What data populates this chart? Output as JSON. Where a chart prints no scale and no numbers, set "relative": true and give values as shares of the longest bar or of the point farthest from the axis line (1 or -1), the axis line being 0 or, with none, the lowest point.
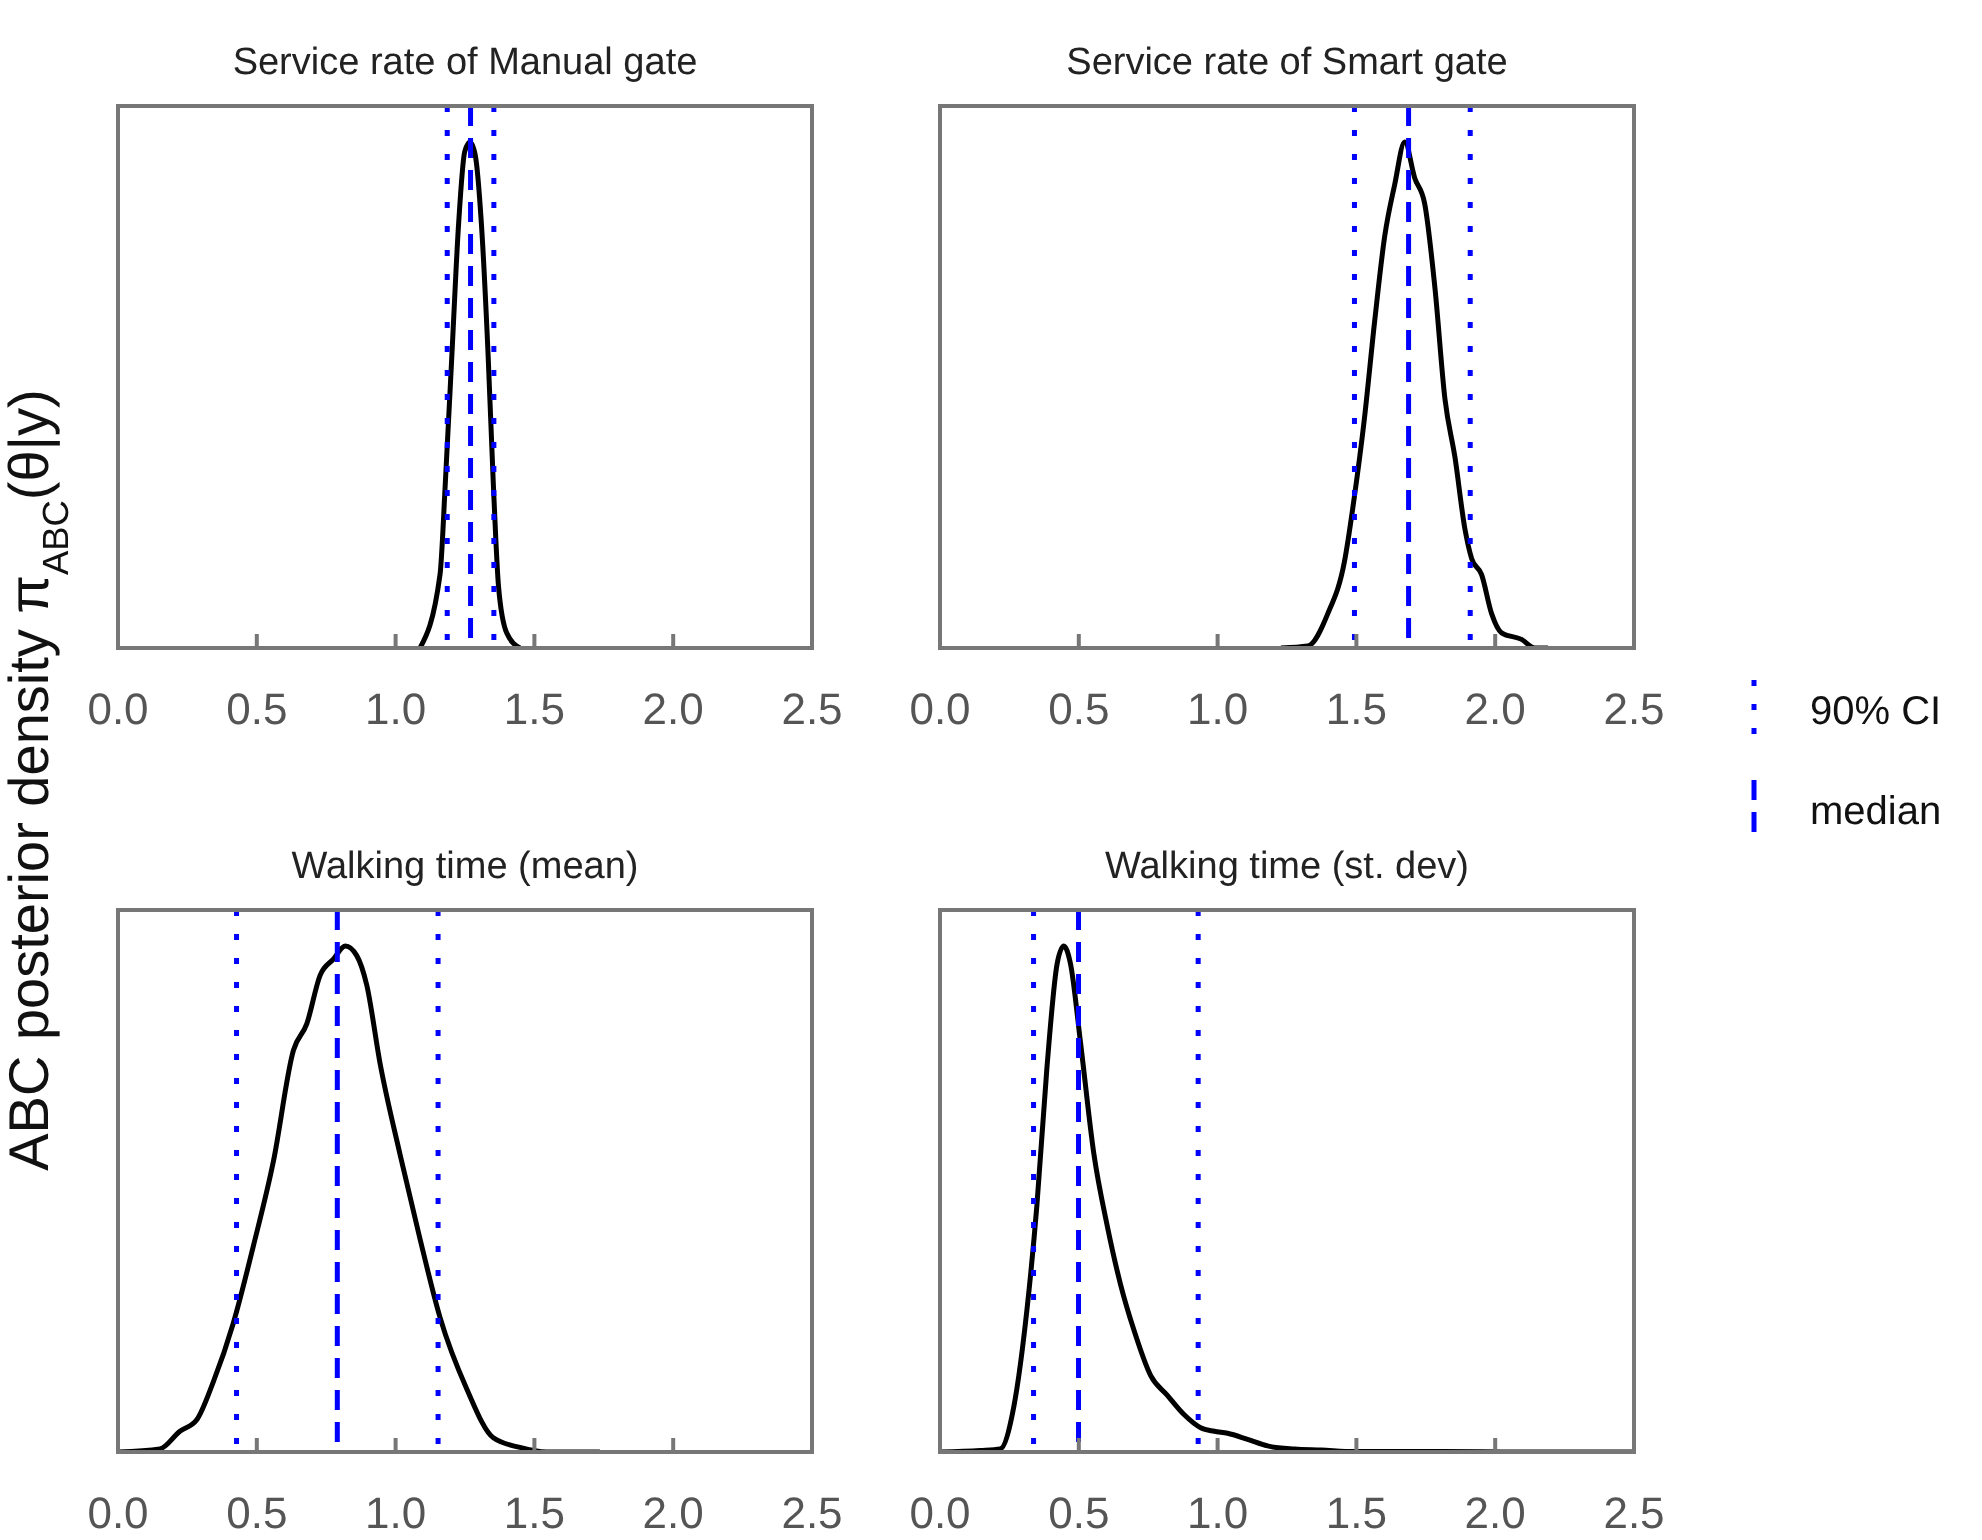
{
  "chart_data": [
    {
      "type": "line",
      "title": "Service rate of Manual gate",
      "ylabel": "ABC posterior density π$_{ABC}$(θ|y)",
      "relative": true,
      "xlim": [
        0,
        2.5
      ],
      "xticks": [
        {
          "value": 0,
          "label": "0.0"
        },
        {
          "value": 0.5,
          "label": "0.5"
        },
        {
          "value": 1,
          "label": "1.0"
        },
        {
          "value": 1.5,
          "label": "1.5"
        },
        {
          "value": 2,
          "label": "2.0"
        },
        {
          "value": 2.5,
          "label": "2.5"
        }
      ],
      "tick_labels": "x",
      "grid": false,
      "legend": false,
      "series": [
        {
          "color": "#000000",
          "x": [
            1.088,
            1.16,
            1.179,
            1.203,
            1.227,
            1.249,
            1.268,
            1.287,
            1.309,
            1.333,
            1.352,
            1.371,
            1.4,
            1.448
          ],
          "values": [
            0,
            0.145,
            0.325,
            0.582,
            0.839,
            0.981,
            1,
            0.974,
            0.839,
            0.582,
            0.325,
            0.12,
            0.03,
            0
          ]
        }
      ],
      "ref_lines": [
        {
          "axis": "x",
          "value": 1.186,
          "color": "#0000ff",
          "line_style": "dotted"
        },
        {
          "axis": "x",
          "value": 1.354,
          "color": "#0000ff",
          "line_style": "dotted"
        },
        {
          "axis": "x",
          "value": 1.27,
          "color": "#0000ff",
          "line_style": "dashed"
        }
      ]
    },
    {
      "type": "line",
      "title": "Service rate of Smart gate",
      "relative": true,
      "xlim": [
        0,
        2.5
      ],
      "xticks": [
        {
          "value": 0,
          "label": "0.0"
        },
        {
          "value": 0.5,
          "label": "0.5"
        },
        {
          "value": 1,
          "label": "1.0"
        },
        {
          "value": 1.5,
          "label": "1.5"
        },
        {
          "value": 2,
          "label": "2.0"
        },
        {
          "value": 2.5,
          "label": "2.5"
        }
      ],
      "tick_labels": "x",
      "grid": false,
      "legend": "right",
      "series": [
        {
          "color": "#000000",
          "x": [
            1.228,
            1.325,
            1.397,
            1.457,
            1.493,
            1.529,
            1.566,
            1.602,
            1.638,
            1.674,
            1.71,
            1.746,
            1.783,
            1.819,
            1.855,
            1.891,
            1.915,
            1.951,
            1.987,
            2.023,
            2.095,
            2.143,
            2.19
          ],
          "values": [
            0,
            0.004,
            0.068,
            0.171,
            0.3,
            0.454,
            0.647,
            0.814,
            0.916,
            1,
            0.929,
            0.878,
            0.711,
            0.492,
            0.377,
            0.235,
            0.177,
            0.145,
            0.068,
            0.03,
            0.017,
            0,
            0
          ]
        }
      ],
      "ref_lines": [
        {
          "axis": "x",
          "value": 1.493,
          "color": "#0000ff",
          "line_style": "dotted",
          "label": "90% CI"
        },
        {
          "axis": "x",
          "value": 1.91,
          "color": "#0000ff",
          "line_style": "dotted"
        },
        {
          "axis": "x",
          "value": 1.688,
          "color": "#0000ff",
          "line_style": "dashed",
          "label": "median"
        }
      ]
    },
    {
      "type": "line",
      "title": "Walking time (mean)",
      "relative": true,
      "xlim": [
        0,
        2.5
      ],
      "xticks": [
        {
          "value": 0,
          "label": "0.0"
        },
        {
          "value": 0.5,
          "label": "0.5"
        },
        {
          "value": 1,
          "label": "1.0"
        },
        {
          "value": 1.5,
          "label": "1.5"
        },
        {
          "value": 2,
          "label": "2.0"
        },
        {
          "value": 2.5,
          "label": "2.5"
        }
      ],
      "tick_labels": "x",
      "grid": false,
      "legend": false,
      "series": [
        {
          "color": "#000000",
          "x": [
            0,
            0.151,
            0.223,
            0.283,
            0.343,
            0.415,
            0.488,
            0.56,
            0.632,
            0.68,
            0.728,
            0.776,
            0.819,
            0.86,
            0.896,
            0.944,
            1.016,
            1.088,
            1.16,
            1.256,
            1.352,
            1.448,
            1.544,
            1.736
          ],
          "values": [
            0,
            0.006,
            0.041,
            0.063,
            0.138,
            0.254,
            0.408,
            0.575,
            0.794,
            0.846,
            0.942,
            0.974,
            1,
            0.981,
            0.923,
            0.768,
            0.588,
            0.421,
            0.266,
            0.125,
            0.028,
            0.009,
            0,
            0
          ]
        }
      ],
      "ref_lines": [
        {
          "axis": "x",
          "value": 0.427,
          "color": "#0000ff",
          "line_style": "dotted"
        },
        {
          "axis": "x",
          "value": 1.153,
          "color": "#0000ff",
          "line_style": "dotted"
        },
        {
          "axis": "x",
          "value": 0.79,
          "color": "#0000ff",
          "line_style": "dashed"
        }
      ]
    },
    {
      "type": "line",
      "title": "Walking time (st. dev)",
      "relative": true,
      "xlim": [
        0,
        2.5
      ],
      "xticks": [
        {
          "value": 0,
          "label": "0.0"
        },
        {
          "value": 0.5,
          "label": "0.5"
        },
        {
          "value": 1,
          "label": "1.0"
        },
        {
          "value": 1.5,
          "label": "1.5"
        },
        {
          "value": 2,
          "label": "2.0"
        },
        {
          "value": 2.5,
          "label": "2.5"
        }
      ],
      "tick_labels": "x",
      "grid": false,
      "legend": false,
      "series": [
        {
          "color": "#000000",
          "x": [
            0,
            0.145,
            0.217,
            0.265,
            0.313,
            0.349,
            0.385,
            0.422,
            0.446,
            0.47,
            0.506,
            0.554,
            0.602,
            0.65,
            0.698,
            0.759,
            0.819,
            0.879,
            0.939,
            0.988,
            1.036,
            1.108,
            1.18,
            1.277,
            1.373,
            1.493,
            1.806,
            2.047,
            2.5
          ],
          "values": [
            0,
            0.003,
            0.006,
            0.087,
            0.28,
            0.487,
            0.758,
            0.965,
            1,
            0.965,
            0.81,
            0.59,
            0.448,
            0.332,
            0.242,
            0.151,
            0.112,
            0.074,
            0.048,
            0.041,
            0.037,
            0.025,
            0.012,
            0.006,
            0.004,
            0.001,
            0.001,
            0,
            0
          ]
        }
      ],
      "ref_lines": [
        {
          "axis": "x",
          "value": 0.337,
          "color": "#0000ff",
          "line_style": "dotted"
        },
        {
          "axis": "x",
          "value": 0.93,
          "color": "#0000ff",
          "line_style": "dotted"
        },
        {
          "axis": "x",
          "value": 0.499,
          "color": "#0000ff",
          "line_style": "dashed"
        }
      ]
    }
  ]
}
